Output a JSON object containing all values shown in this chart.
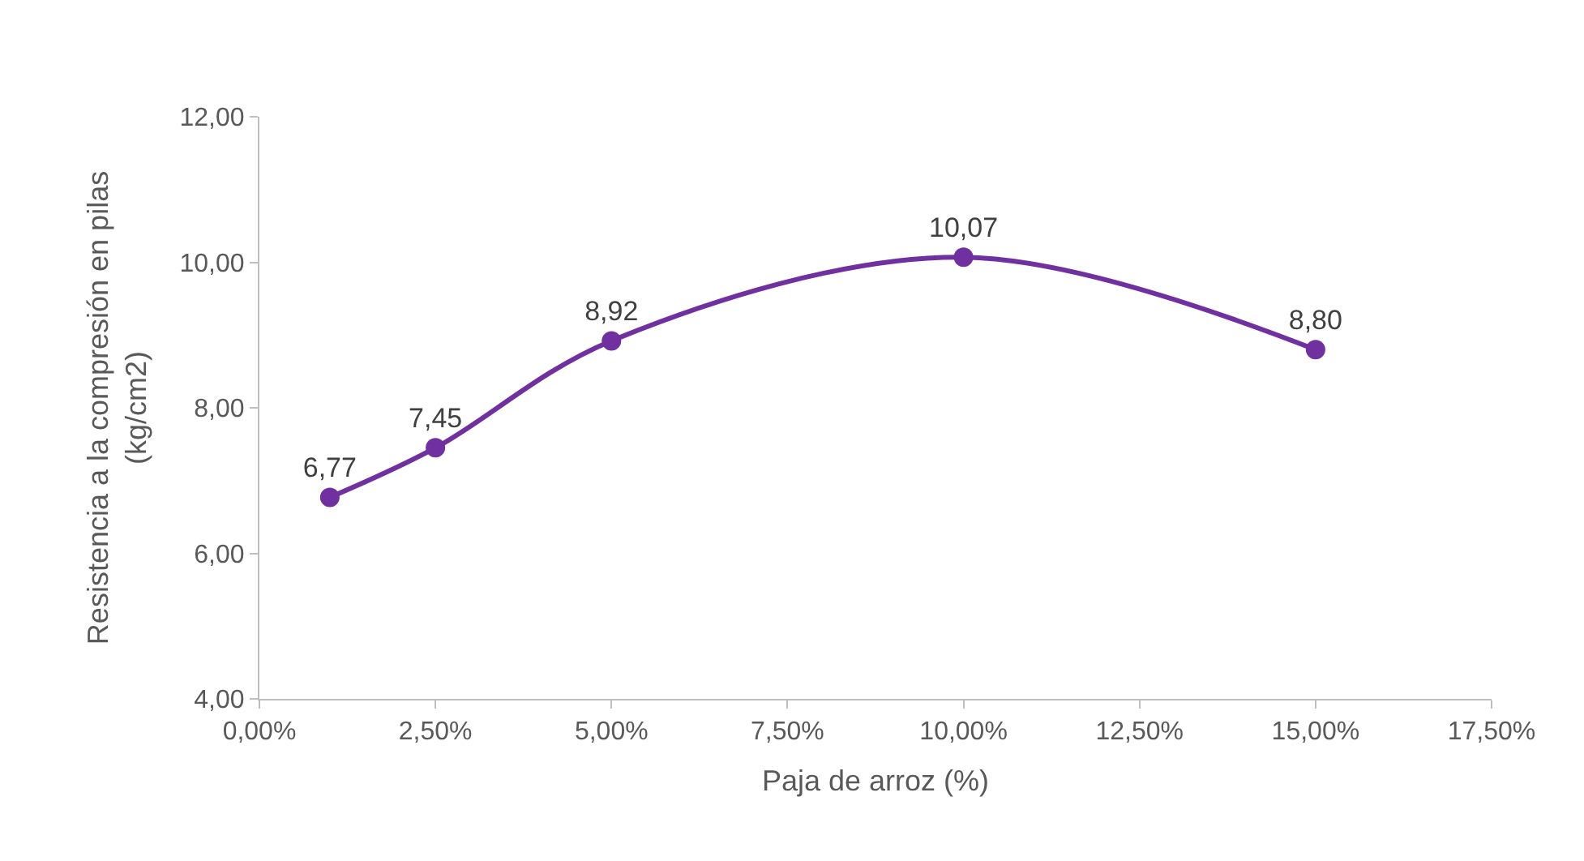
{
  "chart_data": {
    "type": "line",
    "xlabel": "Paja de arroz (%)",
    "ylabel": "Resistencia a la compresión en pilas\n(kg/cm2)",
    "x": [
      1.0,
      2.5,
      5.0,
      10.0,
      15.0
    ],
    "series": [
      {
        "color": "#7030a0",
        "values": [
          6.77,
          7.45,
          8.92,
          10.07,
          8.8
        ],
        "value_labels": [
          "6,77",
          "7,45",
          "8,92",
          "10,07",
          "8,80"
        ]
      }
    ],
    "xlim": [
      0,
      17.5
    ],
    "xticks": [
      {
        "value": 0,
        "label": "0,00%"
      },
      {
        "value": 2.5,
        "label": "2,50%"
      },
      {
        "value": 5,
        "label": "5,00%"
      },
      {
        "value": 7.5,
        "label": "7,50%"
      },
      {
        "value": 10,
        "label": "10,00%"
      },
      {
        "value": 12.5,
        "label": "12,50%"
      },
      {
        "value": 15,
        "label": "15,00%"
      },
      {
        "value": 17.5,
        "label": "17,50%"
      }
    ],
    "ylim": [
      4,
      12
    ],
    "yticks": [
      {
        "value": 4,
        "label": "4,00"
      },
      {
        "value": 6,
        "label": "6,00"
      },
      {
        "value": 8,
        "label": "8,00"
      },
      {
        "value": 10,
        "label": "10,00"
      },
      {
        "value": 12,
        "label": "12,00"
      }
    ],
    "marker": "circle",
    "line_style": "solid"
  }
}
